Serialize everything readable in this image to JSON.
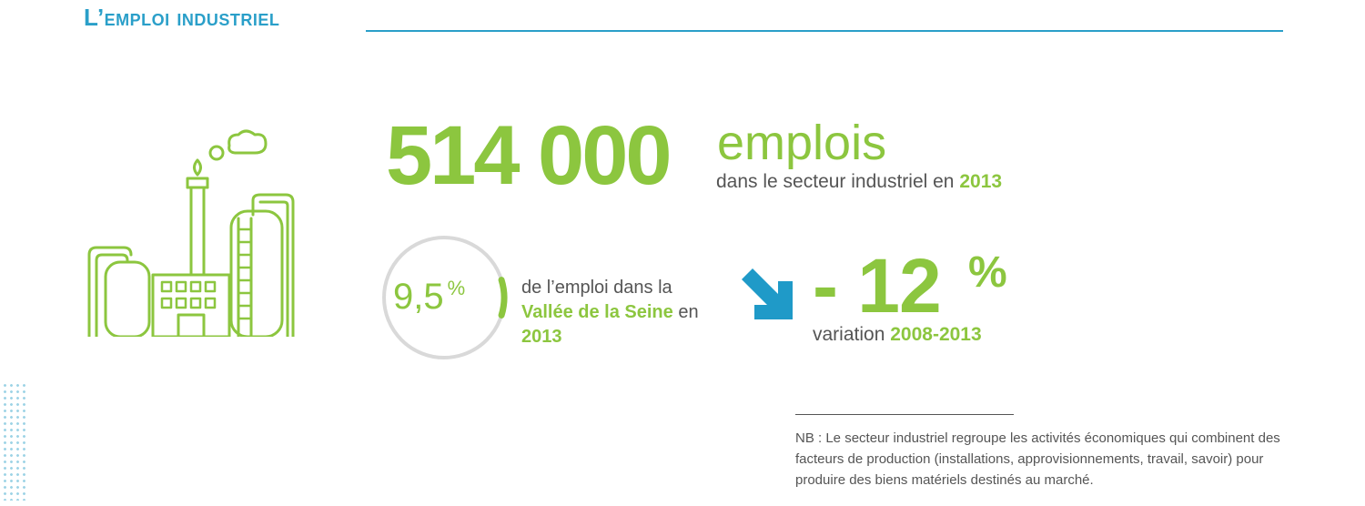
{
  "section": {
    "title": "L’emploi industriel"
  },
  "headline": {
    "value": "514 000",
    "unit": "emplois",
    "caption": "dans le secteur industriel en",
    "year": "2013"
  },
  "share": {
    "value": "9,5",
    "percent_sign": "%",
    "fraction": 0.095,
    "text_before": "de l’emploi dans la",
    "highlight": "Vallée de la Seine",
    "text_after": "en",
    "year": "2013"
  },
  "variation": {
    "value": "- 12",
    "percent_sign": "%",
    "label": "variation",
    "period": "2008-2013",
    "arrow_icon": "arrow-down-right-icon"
  },
  "note": {
    "text": "NB : Le secteur industriel regroupe les activités économiques qui combinent des facteurs de production (installations, approvisionnements, travail, savoir) pour produire des biens matériels destinés au marché."
  },
  "colors": {
    "title_blue": "#2a9fc9",
    "accent_green": "#8cc63f",
    "text_gray": "#555555",
    "ring_gray": "#d9d9d9",
    "arrow_blue": "#1f9ac8"
  }
}
